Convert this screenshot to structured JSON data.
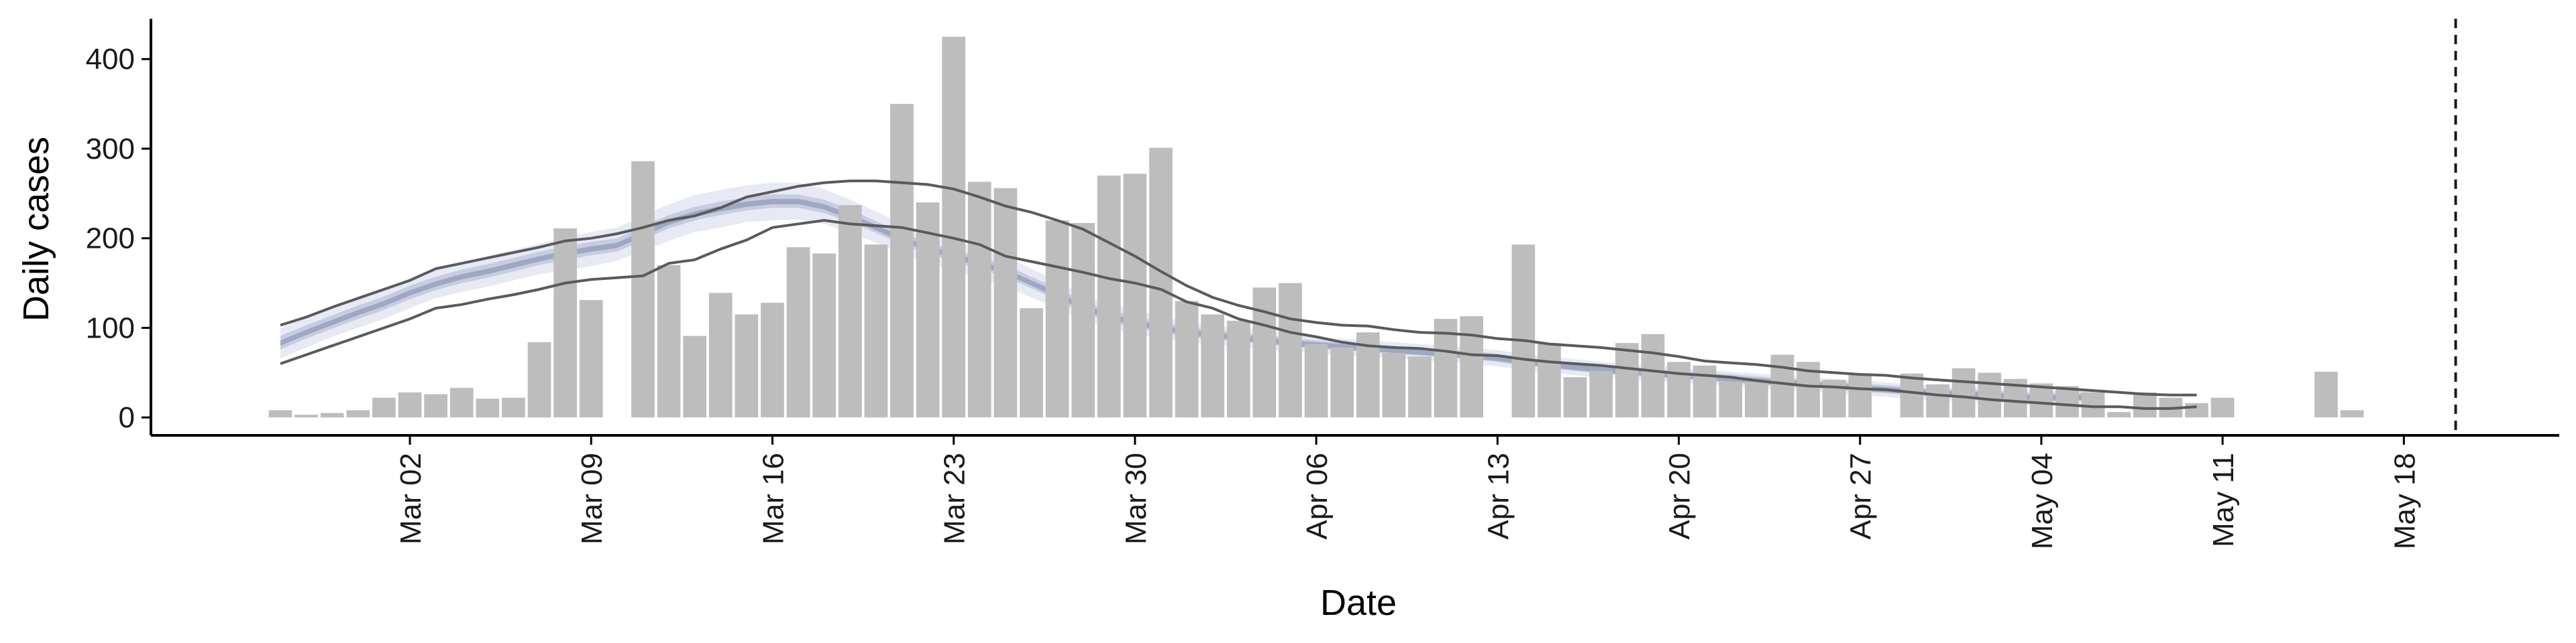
{
  "chart_data": {
    "type": "bar",
    "xlabel": "Date",
    "ylabel": "Daily cases",
    "ylim": [
      -20,
      445
    ],
    "yticks": [
      0,
      100,
      200,
      300,
      400
    ],
    "xlim_dates": [
      "2020-02-21",
      "2020-05-24"
    ],
    "xticks": [
      {
        "date": "2020-03-02",
        "label": "Mar 02"
      },
      {
        "date": "2020-03-09",
        "label": "Mar 09"
      },
      {
        "date": "2020-03-16",
        "label": "Mar 16"
      },
      {
        "date": "2020-03-23",
        "label": "Mar 23"
      },
      {
        "date": "2020-03-30",
        "label": "Mar 30"
      },
      {
        "date": "2020-04-06",
        "label": "Apr 06"
      },
      {
        "date": "2020-04-13",
        "label": "Apr 13"
      },
      {
        "date": "2020-04-20",
        "label": "Apr 20"
      },
      {
        "date": "2020-04-27",
        "label": "Apr 27"
      },
      {
        "date": "2020-05-04",
        "label": "May 04"
      },
      {
        "date": "2020-05-11",
        "label": "May 11"
      },
      {
        "date": "2020-05-18",
        "label": "May 18"
      }
    ],
    "bars": {
      "start_date": "2020-02-26",
      "values": [
        8,
        3,
        5,
        8,
        22,
        28,
        26,
        33,
        21,
        22,
        84,
        211,
        131,
        0,
        286,
        170,
        91,
        139,
        115,
        128,
        190,
        183,
        237,
        193,
        350,
        240,
        425,
        263,
        256,
        122,
        220,
        217,
        270,
        272,
        301,
        130,
        115,
        108,
        145,
        150,
        82,
        78,
        95,
        72,
        68,
        110,
        113,
        0,
        193,
        83,
        45,
        52,
        83,
        93,
        62,
        58,
        40,
        40,
        70,
        62,
        42,
        48,
        0,
        49,
        37,
        55,
        50,
        43,
        38,
        35,
        28,
        6,
        28,
        22,
        16,
        22,
        0,
        0,
        0,
        51,
        8
      ]
    },
    "median_line": {
      "start_date": "2020-02-26",
      "values": [
        83,
        95,
        106,
        117,
        127,
        139,
        149,
        157,
        163,
        170,
        177,
        183,
        188,
        192,
        205,
        218,
        227,
        233,
        238,
        241,
        241,
        235,
        224,
        212,
        199,
        189,
        180,
        172,
        163,
        150,
        137,
        123,
        113,
        106,
        100,
        95,
        92,
        89,
        86,
        83,
        81,
        79,
        77,
        75,
        73,
        71,
        69,
        66,
        62,
        59,
        56,
        53,
        51,
        49,
        47,
        45,
        43,
        41,
        39,
        37,
        35,
        33,
        31,
        29,
        27,
        26,
        25,
        23,
        22,
        22,
        23
      ]
    },
    "outer_band": {
      "lower": [
        66,
        78,
        90,
        100,
        110,
        122,
        133,
        140,
        146,
        153,
        160,
        164,
        169,
        175,
        186,
        197,
        207,
        212,
        218,
        220,
        221,
        216,
        206,
        195,
        182,
        172,
        163,
        155,
        146,
        134,
        122,
        109,
        99,
        93,
        88,
        84,
        81,
        79,
        76,
        74,
        72,
        70,
        68,
        66,
        64,
        62,
        60,
        57,
        53,
        50,
        47,
        45,
        43,
        41,
        39,
        37,
        35,
        33,
        31,
        29,
        27,
        25,
        23,
        21,
        19,
        18,
        17,
        15,
        14,
        14,
        15
      ],
      "upper": [
        100,
        112,
        122,
        133,
        143,
        155,
        165,
        173,
        180,
        187,
        194,
        201,
        207,
        212,
        225,
        238,
        248,
        254,
        259,
        262,
        262,
        255,
        243,
        230,
        216,
        206,
        197,
        189,
        180,
        166,
        152,
        137,
        127,
        120,
        113,
        107,
        103,
        100,
        97,
        93,
        90,
        88,
        86,
        84,
        82,
        80,
        78,
        75,
        71,
        68,
        65,
        62,
        60,
        58,
        56,
        53,
        51,
        49,
        47,
        45,
        43,
        41,
        39,
        37,
        35,
        34,
        33,
        31,
        30,
        30,
        32
      ]
    },
    "mid_band": {
      "lower": [
        76,
        88,
        99,
        110,
        120,
        132,
        142,
        150,
        156,
        163,
        170,
        176,
        181,
        185,
        198,
        211,
        220,
        226,
        231,
        234,
        234,
        228,
        218,
        206,
        193,
        183,
        174,
        166,
        157,
        144,
        131,
        117,
        107,
        100,
        95,
        90,
        87,
        85,
        82,
        79,
        77,
        75,
        73,
        71,
        69,
        67,
        65,
        62,
        58,
        55,
        52,
        49,
        47,
        45,
        43,
        41,
        39,
        37,
        35,
        33,
        31,
        29,
        27,
        25,
        23,
        22,
        21,
        19,
        18,
        18,
        19
      ],
      "upper": [
        91,
        103,
        114,
        125,
        135,
        147,
        157,
        165,
        171,
        178,
        185,
        191,
        196,
        200,
        213,
        226,
        235,
        241,
        246,
        249,
        249,
        243,
        232,
        219,
        206,
        196,
        187,
        179,
        170,
        157,
        144,
        130,
        120,
        113,
        106,
        101,
        98,
        95,
        92,
        89,
        86,
        84,
        82,
        80,
        78,
        76,
        74,
        71,
        67,
        64,
        61,
        58,
        56,
        54,
        52,
        50,
        48,
        46,
        44,
        42,
        40,
        38,
        36,
        34,
        32,
        31,
        30,
        28,
        27,
        27,
        28
      ]
    },
    "ci_lower_line": {
      "start_date": "2020-02-26",
      "values": [
        60,
        70,
        80,
        90,
        100,
        110,
        122,
        126,
        132,
        137,
        143,
        150,
        154,
        156,
        158,
        172,
        176,
        188,
        198,
        212,
        216,
        220,
        216,
        214,
        212,
        206,
        200,
        193,
        180,
        174,
        168,
        162,
        155,
        150,
        143,
        129,
        122,
        110,
        103,
        95,
        90,
        84,
        80,
        78,
        77,
        74,
        70,
        69,
        65,
        62,
        60,
        58,
        55,
        52,
        49,
        47,
        45,
        41,
        38,
        35,
        34,
        32,
        31,
        28,
        25,
        23,
        20,
        18,
        16,
        14,
        12,
        12,
        10,
        10,
        12
      ]
    },
    "ci_upper_line": {
      "start_date": "2020-02-26",
      "values": [
        103,
        112,
        123,
        133,
        143,
        153,
        166,
        172,
        178,
        184,
        190,
        197,
        200,
        205,
        212,
        220,
        225,
        234,
        246,
        252,
        258,
        262,
        264,
        264,
        262,
        260,
        255,
        246,
        236,
        229,
        220,
        210,
        195,
        180,
        163,
        147,
        134,
        125,
        118,
        110,
        106,
        103,
        102,
        98,
        95,
        94,
        92,
        88,
        86,
        82,
        80,
        78,
        75,
        72,
        68,
        63,
        61,
        59,
        56,
        52,
        50,
        48,
        47,
        44,
        42,
        40,
        38,
        36,
        34,
        32,
        30,
        28,
        26,
        25,
        25
      ]
    },
    "vline_date": "2020-05-20"
  }
}
